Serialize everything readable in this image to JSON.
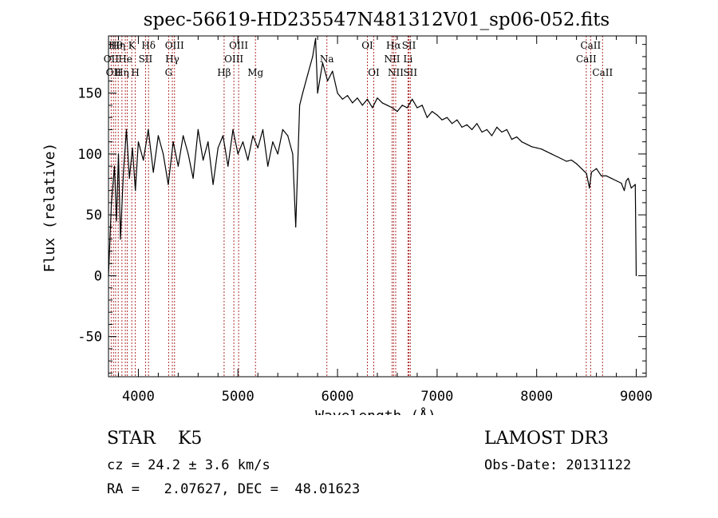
{
  "chart_data": {
    "type": "line",
    "title": "spec-56619-HD235547N481312V01_sp06-052.fits",
    "xlabel": "Wavelength (Å)",
    "ylabel": "Flux (relative)",
    "xlim": [
      3700,
      9100
    ],
    "ylim": [
      -83,
      197
    ],
    "x_ticks": [
      4000,
      5000,
      6000,
      7000,
      8000,
      9000
    ],
    "y_ticks": [
      -50,
      0,
      50,
      100,
      150
    ],
    "grid": false,
    "series": [
      {
        "color": "#000000",
        "x": [
          3700,
          3730,
          3760,
          3780,
          3800,
          3820,
          3850,
          3880,
          3910,
          3940,
          3970,
          4000,
          4050,
          4100,
          4150,
          4200,
          4250,
          4300,
          4350,
          4400,
          4450,
          4500,
          4550,
          4600,
          4650,
          4700,
          4750,
          4800,
          4850,
          4900,
          4950,
          5000,
          5050,
          5100,
          5150,
          5200,
          5250,
          5300,
          5350,
          5400,
          5450,
          5500,
          5550,
          5580,
          5620,
          5650,
          5700,
          5750,
          5780,
          5800,
          5850,
          5900,
          5950,
          6000,
          6050,
          6100,
          6150,
          6200,
          6250,
          6300,
          6350,
          6400,
          6450,
          6500,
          6550,
          6600,
          6650,
          6700,
          6750,
          6800,
          6850,
          6900,
          6950,
          7000,
          7050,
          7100,
          7150,
          7200,
          7250,
          7300,
          7350,
          7400,
          7450,
          7500,
          7550,
          7600,
          7650,
          7700,
          7750,
          7800,
          7850,
          7900,
          7950,
          8000,
          8050,
          8100,
          8150,
          8200,
          8250,
          8300,
          8350,
          8400,
          8450,
          8500,
          8530,
          8550,
          8600,
          8650,
          8700,
          8750,
          8800,
          8850,
          8880,
          8900,
          8920,
          8950,
          8990,
          9000
        ],
        "y": [
          0,
          60,
          90,
          45,
          100,
          30,
          85,
          120,
          80,
          105,
          70,
          110,
          95,
          120,
          85,
          115,
          100,
          75,
          110,
          90,
          115,
          100,
          80,
          120,
          95,
          110,
          75,
          105,
          115,
          90,
          120,
          100,
          110,
          95,
          115,
          105,
          120,
          90,
          110,
          100,
          120,
          115,
          100,
          40,
          140,
          150,
          165,
          180,
          195,
          150,
          175,
          160,
          168,
          150,
          145,
          148,
          142,
          146,
          140,
          145,
          138,
          146,
          142,
          140,
          138,
          135,
          140,
          138,
          145,
          138,
          140,
          130,
          135,
          132,
          128,
          130,
          125,
          128,
          122,
          124,
          120,
          125,
          118,
          120,
          115,
          122,
          118,
          120,
          112,
          114,
          110,
          108,
          106,
          105,
          104,
          102,
          100,
          98,
          96,
          94,
          95,
          92,
          88,
          84,
          72,
          85,
          88,
          82,
          82,
          80,
          78,
          76,
          70,
          78,
          80,
          72,
          75,
          0
        ]
      }
    ],
    "lines": [
      {
        "wl": 3727,
        "label": "OII",
        "row": 2
      },
      {
        "wl": 3750,
        "label": "OII",
        "row": 3
      },
      {
        "wl": 3771,
        "label": "Hθ",
        "row": 1
      },
      {
        "wl": 3798,
        "label": "Hη",
        "row": 1
      },
      {
        "wl": 3835,
        "label": "Hη",
        "row": 3
      },
      {
        "wl": 3869,
        "label": "He",
        "row": 2
      },
      {
        "wl": 3889,
        "label": "",
        "row": 0
      },
      {
        "wl": 3934,
        "label": "K",
        "row": 1
      },
      {
        "wl": 3969,
        "label": "H",
        "row": 3
      },
      {
        "wl": 4072,
        "label": "SII",
        "row": 2
      },
      {
        "wl": 4102,
        "label": "Hδ",
        "row": 1
      },
      {
        "wl": 4304,
        "label": "G",
        "row": 3
      },
      {
        "wl": 4341,
        "label": "Hγ",
        "row": 2
      },
      {
        "wl": 4363,
        "label": "OIII",
        "row": 1
      },
      {
        "wl": 4861,
        "label": "Hβ",
        "row": 3
      },
      {
        "wl": 4959,
        "label": "OIII",
        "row": 2
      },
      {
        "wl": 5007,
        "label": "OIII",
        "row": 1
      },
      {
        "wl": 5176,
        "label": "Mg",
        "row": 3
      },
      {
        "wl": 5893,
        "label": "Na",
        "row": 2
      },
      {
        "wl": 6300,
        "label": "OI",
        "row": 1
      },
      {
        "wl": 6364,
        "label": "OI",
        "row": 3
      },
      {
        "wl": 6548,
        "label": "NII",
        "row": 2
      },
      {
        "wl": 6563,
        "label": "Hα",
        "row": 1
      },
      {
        "wl": 6584,
        "label": "NII",
        "row": 3
      },
      {
        "wl": 6708,
        "label": "Li",
        "row": 2
      },
      {
        "wl": 6717,
        "label": "SII",
        "row": 1
      },
      {
        "wl": 6731,
        "label": "SII",
        "row": 3
      },
      {
        "wl": 8498,
        "label": "CaII",
        "row": 2
      },
      {
        "wl": 8542,
        "label": "CaII",
        "row": 1
      },
      {
        "wl": 8662,
        "label": "CaII",
        "row": 3
      }
    ]
  },
  "info": {
    "class": "STAR    K5",
    "survey": "LAMOST DR3",
    "cz": "cz = 24.2 ± 3.6 km/s",
    "obs_date": "Obs-Date: 20131122",
    "coords": "RA =   2.07627, DEC =  48.01623"
  }
}
